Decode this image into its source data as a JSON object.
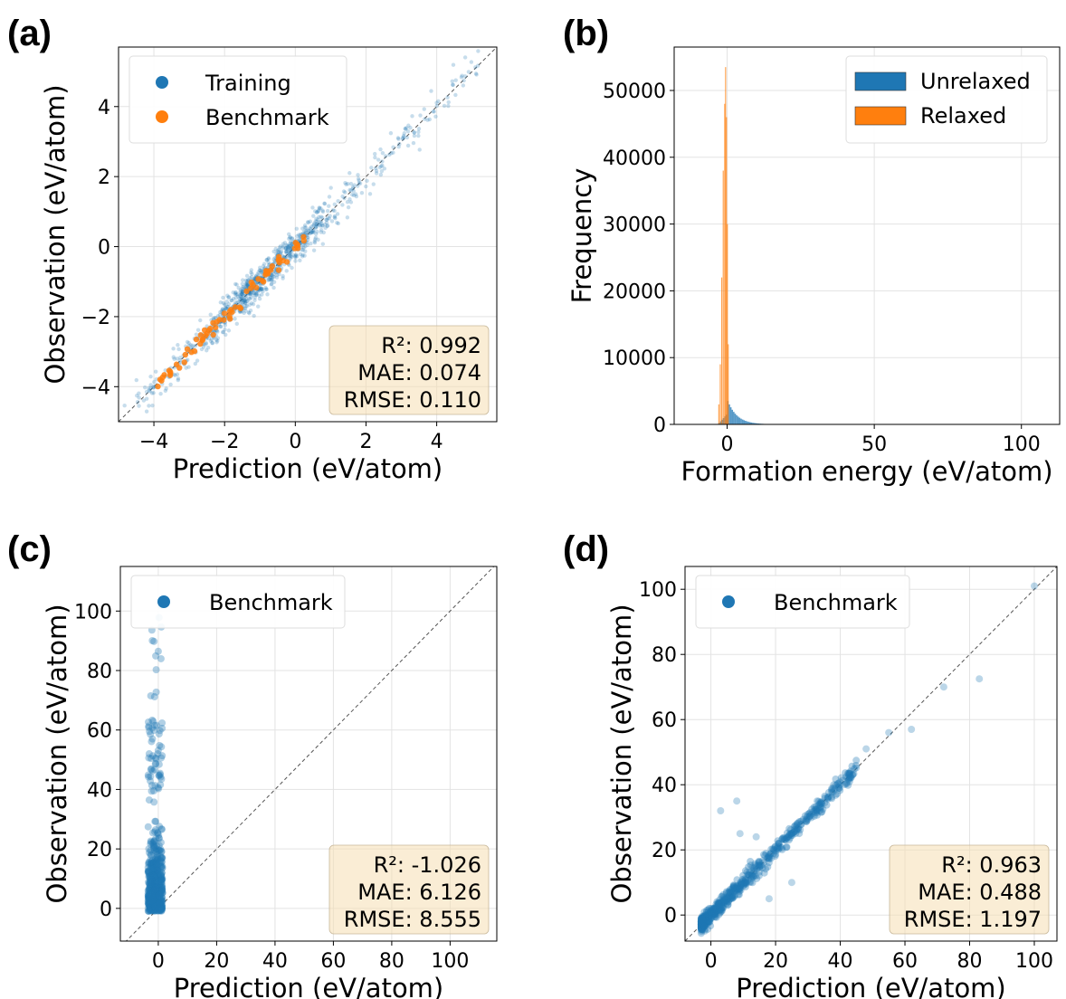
{
  "chart_data": [
    {
      "panel": "(a)",
      "type": "scatter",
      "xlabel": "Prediction (eV/atom)",
      "ylabel": "Observation (eV/atom)",
      "xlim": [
        -5,
        5.7
      ],
      "ylim": [
        -5,
        5.7
      ],
      "xticks": [
        -4,
        -2,
        0,
        2,
        4
      ],
      "yticks": [
        -4,
        -2,
        0,
        2,
        4
      ],
      "tick_labels_x": [
        "−4",
        "−2",
        "0",
        "2",
        "4"
      ],
      "tick_labels_y": [
        "−4",
        "−2",
        "0",
        "2",
        "4"
      ],
      "grid": true,
      "diagonal": true,
      "legend_position": "upper-left",
      "series": [
        {
          "name": "Training",
          "color": "#1f77b4",
          "x_range": [
            -4.5,
            5.2
          ],
          "spread": 0.25,
          "n_points": 900
        },
        {
          "name": "Benchmark",
          "color": "#ff7f0e",
          "x_range": [
            -3.9,
            0.3
          ],
          "spread": 0.1,
          "n_points": 70
        }
      ],
      "stats": [
        "R²: 0.992",
        "MAE: 0.074",
        "RMSE: 0.110"
      ]
    },
    {
      "panel": "(b)",
      "type": "histogram",
      "xlabel": "Formation energy (eV/atom)",
      "ylabel": "Frequency",
      "xlim": [
        -18,
        113
      ],
      "ylim": [
        0,
        56500
      ],
      "xticks": [
        0,
        50,
        100
      ],
      "yticks": [
        0,
        10000,
        20000,
        30000,
        40000,
        50000
      ],
      "tick_labels_x": [
        "0",
        "50",
        "100"
      ],
      "tick_labels_y": [
        "0",
        "10000",
        "20000",
        "30000",
        "40000",
        "50000"
      ],
      "grid": true,
      "legend_position": "upper-right",
      "series": [
        {
          "name": "Unrelaxed",
          "color": "#1f77b4",
          "peak_x": 1.0,
          "peak_frequency": 3500,
          "tail_to": 35
        },
        {
          "name": "Relaxed",
          "color": "#ff7f0e",
          "peak_x": -0.5,
          "peak_frequency": 53500,
          "range": [
            -3,
            0.5
          ]
        }
      ]
    },
    {
      "panel": "(c)",
      "type": "scatter",
      "xlabel": "Prediction (eV/atom)",
      "ylabel": "Observation (eV/atom)",
      "xlim": [
        -13,
        116
      ],
      "ylim": [
        -11,
        115
      ],
      "xticks": [
        0,
        20,
        40,
        60,
        80,
        100
      ],
      "yticks": [
        0,
        20,
        40,
        60,
        80,
        100
      ],
      "tick_labels_x": [
        "0",
        "20",
        "40",
        "60",
        "80",
        "100"
      ],
      "tick_labels_y": [
        "0",
        "20",
        "40",
        "60",
        "80",
        "100"
      ],
      "grid": true,
      "diagonal": true,
      "legend_position": "upper-left",
      "series": [
        {
          "name": "Benchmark",
          "color": "#1f77b4",
          "x_range": [
            -3.5,
            1.5
          ],
          "y_range": [
            -3,
            105
          ],
          "n_points": 600
        }
      ],
      "stats": [
        "R²: -1.026",
        "MAE: 6.126",
        "RMSE: 8.555"
      ]
    },
    {
      "panel": "(d)",
      "type": "scatter",
      "xlabel": "Prediction (eV/atom)",
      "ylabel": "Observation (eV/atom)",
      "xlim": [
        -8,
        107
      ],
      "ylim": [
        -8,
        107
      ],
      "xticks": [
        0,
        20,
        40,
        60,
        80,
        100
      ],
      "yticks": [
        0,
        20,
        40,
        60,
        80,
        100
      ],
      "tick_labels_x": [
        "0",
        "20",
        "40",
        "60",
        "80",
        "100"
      ],
      "tick_labels_y": [
        "0",
        "20",
        "40",
        "60",
        "80",
        "100"
      ],
      "grid": true,
      "diagonal": true,
      "legend_position": "upper-left",
      "series": [
        {
          "name": "Benchmark",
          "color": "#1f77b4",
          "x_range": [
            -3,
            45
          ],
          "spread": 1.2,
          "n_points": 600,
          "outliers": [
            [
              100,
              101
            ],
            [
              83,
              72.5
            ],
            [
              72,
              70
            ],
            [
              62,
              57
            ],
            [
              55,
              56
            ],
            [
              48,
              51
            ],
            [
              8,
              35
            ],
            [
              3,
              32
            ],
            [
              14,
              24
            ],
            [
              9,
              25
            ],
            [
              18,
              5
            ],
            [
              25,
              10
            ]
          ]
        }
      ],
      "stats": [
        "R²: 0.963",
        "MAE: 0.488",
        "RMSE: 1.197"
      ]
    }
  ]
}
